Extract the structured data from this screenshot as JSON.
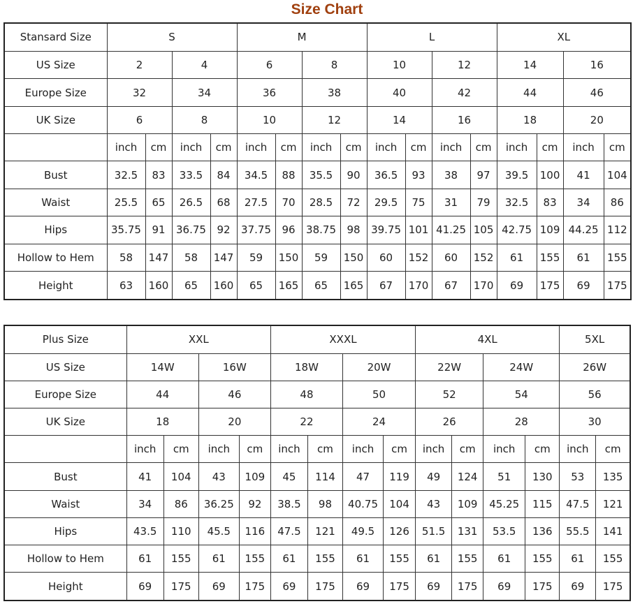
{
  "title": "Size Chart",
  "unit_labels": {
    "inch": "inch",
    "cm": "cm"
  },
  "tables": [
    {
      "header_label": "Stansard Size",
      "groups": [
        {
          "name": "S",
          "sizes": 2
        },
        {
          "name": "M",
          "sizes": 2
        },
        {
          "name": "L",
          "sizes": 2
        },
        {
          "name": "XL",
          "sizes": 2
        }
      ],
      "size_rows": [
        {
          "label": "US Size",
          "values": [
            "2",
            "4",
            "6",
            "8",
            "10",
            "12",
            "14",
            "16"
          ]
        },
        {
          "label": "Europe Size",
          "values": [
            "32",
            "34",
            "36",
            "38",
            "40",
            "42",
            "44",
            "46"
          ]
        },
        {
          "label": "UK Size",
          "values": [
            "6",
            "8",
            "10",
            "12",
            "14",
            "16",
            "18",
            "20"
          ]
        }
      ],
      "measurements": [
        {
          "label": "Bust",
          "values": [
            "32.5",
            "83",
            "33.5",
            "84",
            "34.5",
            "88",
            "35.5",
            "90",
            "36.5",
            "93",
            "38",
            "97",
            "39.5",
            "100",
            "41",
            "104"
          ]
        },
        {
          "label": "Waist",
          "values": [
            "25.5",
            "65",
            "26.5",
            "68",
            "27.5",
            "70",
            "28.5",
            "72",
            "29.5",
            "75",
            "31",
            "79",
            "32.5",
            "83",
            "34",
            "86"
          ]
        },
        {
          "label": "Hips",
          "values": [
            "35.75",
            "91",
            "36.75",
            "92",
            "37.75",
            "96",
            "38.75",
            "98",
            "39.75",
            "101",
            "41.25",
            "105",
            "42.75",
            "109",
            "44.25",
            "112"
          ]
        },
        {
          "label": "Hollow to Hem",
          "values": [
            "58",
            "147",
            "58",
            "147",
            "59",
            "150",
            "59",
            "150",
            "60",
            "152",
            "60",
            "152",
            "61",
            "155",
            "61",
            "155"
          ]
        },
        {
          "label": "Height",
          "values": [
            "63",
            "160",
            "65",
            "160",
            "65",
            "165",
            "65",
            "165",
            "67",
            "170",
            "67",
            "170",
            "69",
            "175",
            "69",
            "175"
          ]
        }
      ]
    },
    {
      "header_label": "Plus Size",
      "groups": [
        {
          "name": "XXL",
          "sizes": 2
        },
        {
          "name": "XXXL",
          "sizes": 2
        },
        {
          "name": "4XL",
          "sizes": 2
        },
        {
          "name": "5XL",
          "sizes": 1
        }
      ],
      "size_rows": [
        {
          "label": "US Size",
          "values": [
            "14W",
            "16W",
            "18W",
            "20W",
            "22W",
            "24W",
            "26W"
          ]
        },
        {
          "label": "Europe Size",
          "values": [
            "44",
            "46",
            "48",
            "50",
            "52",
            "54",
            "56"
          ]
        },
        {
          "label": "UK Size",
          "values": [
            "18",
            "20",
            "22",
            "24",
            "26",
            "28",
            "30"
          ]
        }
      ],
      "measurements": [
        {
          "label": "Bust",
          "values": [
            "41",
            "104",
            "43",
            "109",
            "45",
            "114",
            "47",
            "119",
            "49",
            "124",
            "51",
            "130",
            "53",
            "135"
          ]
        },
        {
          "label": "Waist",
          "values": [
            "34",
            "86",
            "36.25",
            "92",
            "38.5",
            "98",
            "40.75",
            "104",
            "43",
            "109",
            "45.25",
            "115",
            "47.5",
            "121"
          ]
        },
        {
          "label": "Hips",
          "values": [
            "43.5",
            "110",
            "45.5",
            "116",
            "47.5",
            "121",
            "49.5",
            "126",
            "51.5",
            "131",
            "53.5",
            "136",
            "55.5",
            "141"
          ]
        },
        {
          "label": "Hollow to Hem",
          "values": [
            "61",
            "155",
            "61",
            "155",
            "61",
            "155",
            "61",
            "155",
            "61",
            "155",
            "61",
            "155",
            "61",
            "155"
          ]
        },
        {
          "label": "Height",
          "values": [
            "69",
            "175",
            "69",
            "175",
            "69",
            "175",
            "69",
            "175",
            "69",
            "175",
            "69",
            "175",
            "69",
            "175"
          ]
        }
      ]
    }
  ]
}
